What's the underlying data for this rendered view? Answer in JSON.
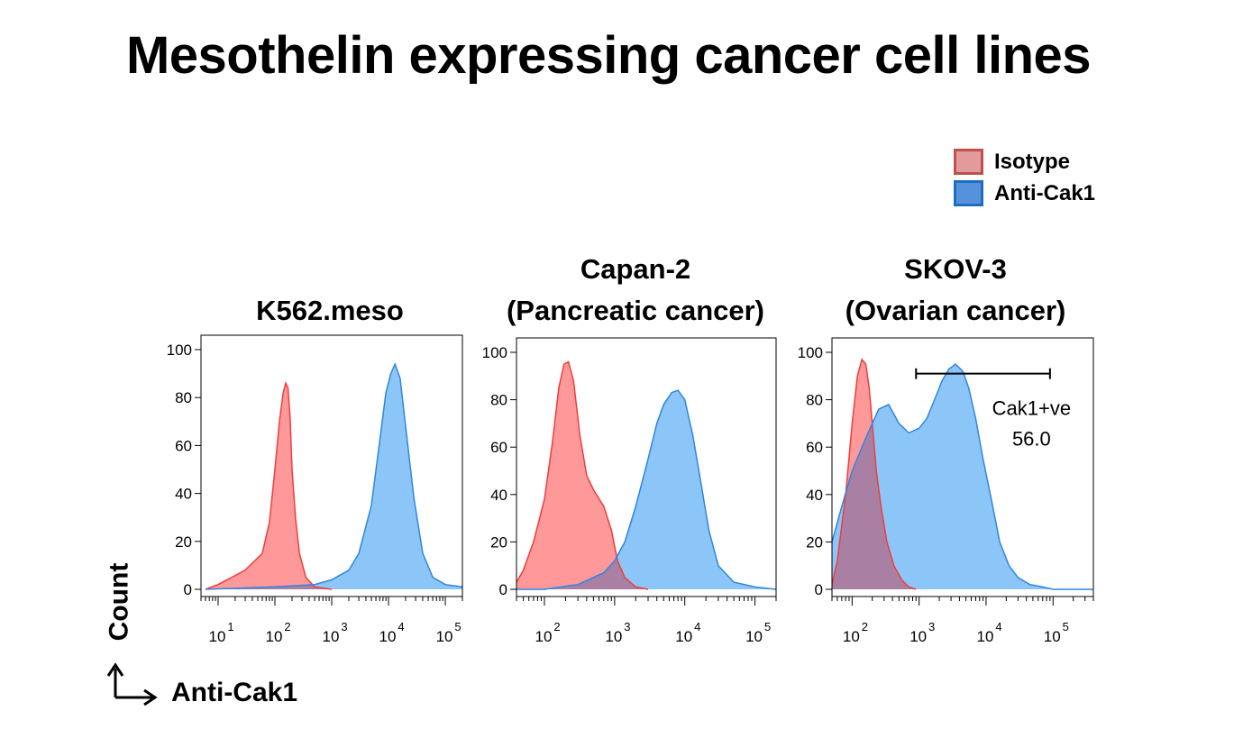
{
  "title": "Mesothelin expressing cancer cell lines",
  "legend": [
    {
      "label": "Isotype",
      "fill": "#e39a9b",
      "border": "#c0504d"
    },
    {
      "label": "Anti-Cak1",
      "fill": "#5691dc",
      "border": "#1f6dbf"
    }
  ],
  "axis_labels": {
    "y": "Count",
    "x": "Anti-Cak1"
  },
  "colors": {
    "isotype_fill": "#ff9999",
    "isotype_line": "#f03c3c",
    "anti_fill": "#8cc5f8",
    "anti_line": "#2f86df",
    "overlap": "#a980a4"
  },
  "chart_data": [
    {
      "type": "area",
      "panel_title": [
        "K562.meso"
      ],
      "xscale": "log",
      "xlim": [
        5,
        200000
      ],
      "ylim": [
        0,
        100
      ],
      "yticks": [
        0,
        20,
        40,
        60,
        80,
        100
      ],
      "xticks": [
        {
          "value": 10,
          "label": "1"
        },
        {
          "value": 100,
          "label": "2"
        },
        {
          "value": 1000,
          "label": "3"
        },
        {
          "value": 10000,
          "label": "4"
        },
        {
          "value": 100000,
          "label": "5"
        }
      ],
      "series": [
        {
          "name": "Isotype",
          "x": [
            6,
            10,
            30,
            60,
            80,
            100,
            120,
            140,
            155,
            170,
            185,
            200,
            230,
            270,
            350,
            500,
            1000
          ],
          "y": [
            0,
            2,
            8,
            15,
            28,
            50,
            70,
            82,
            86,
            84,
            72,
            50,
            30,
            15,
            5,
            1,
            0
          ]
        },
        {
          "name": "Anti-Cak1",
          "x": [
            6,
            100,
            500,
            1000,
            2000,
            3000,
            5000,
            7000,
            9000,
            11000,
            13000,
            16000,
            20000,
            28000,
            40000,
            60000,
            100000,
            200000
          ],
          "y": [
            0,
            1,
            2,
            4,
            8,
            15,
            35,
            62,
            82,
            90,
            94,
            88,
            68,
            38,
            15,
            5,
            2,
            1
          ]
        }
      ]
    },
    {
      "type": "area",
      "panel_title": [
        "Capan-2",
        "(Pancreatic cancer)"
      ],
      "xscale": "log",
      "xlim": [
        40,
        200000
      ],
      "ylim": [
        0,
        100
      ],
      "yticks": [
        0,
        20,
        40,
        60,
        80,
        100
      ],
      "xticks": [
        {
          "value": 100,
          "label": "2"
        },
        {
          "value": 1000,
          "label": "3"
        },
        {
          "value": 10000,
          "label": "4"
        },
        {
          "value": 100000,
          "label": "5"
        }
      ],
      "series": [
        {
          "name": "Isotype",
          "x": [
            40,
            50,
            70,
            100,
            130,
            160,
            190,
            220,
            260,
            320,
            400,
            500,
            700,
            900,
            1100,
            1400,
            2000,
            3000
          ],
          "y": [
            3,
            8,
            20,
            38,
            62,
            85,
            95,
            96,
            88,
            65,
            48,
            42,
            35,
            25,
            12,
            5,
            1,
            0
          ]
        },
        {
          "name": "Anti-Cak1",
          "x": [
            40,
            100,
            300,
            700,
            1000,
            1400,
            2000,
            3000,
            4000,
            5000,
            6500,
            8000,
            10000,
            13000,
            17000,
            22000,
            30000,
            50000,
            100000,
            200000
          ],
          "y": [
            0,
            0,
            2,
            7,
            12,
            20,
            35,
            55,
            70,
            78,
            83,
            84,
            80,
            65,
            45,
            25,
            10,
            3,
            1,
            0
          ]
        }
      ]
    },
    {
      "type": "area",
      "panel_title": [
        "SKOV-3",
        "(Ovarian cancer)"
      ],
      "xscale": "log",
      "xlim": [
        50,
        400000
      ],
      "ylim": [
        0,
        100
      ],
      "yticks": [
        0,
        20,
        40,
        60,
        80,
        100
      ],
      "xticks": [
        {
          "value": 100,
          "label": "2"
        },
        {
          "value": 1000,
          "label": "3"
        },
        {
          "value": 10000,
          "label": "4"
        },
        {
          "value": 100000,
          "label": "5"
        }
      ],
      "gate": {
        "from": 900,
        "to": 90000,
        "y": 91,
        "label": "Cak1+ve",
        "value": "56.0"
      },
      "series": [
        {
          "name": "Isotype",
          "x": [
            50,
            60,
            80,
            100,
            120,
            140,
            160,
            180,
            200,
            230,
            270,
            330,
            420,
            550,
            700,
            900
          ],
          "y": [
            2,
            12,
            40,
            70,
            90,
            97,
            95,
            85,
            70,
            50,
            35,
            20,
            10,
            4,
            1,
            0
          ]
        },
        {
          "name": "Anti-Cak1",
          "x": [
            50,
            70,
            100,
            150,
            200,
            250,
            350,
            500,
            700,
            1000,
            1300,
            1700,
            2200,
            2800,
            3500,
            4500,
            5500,
            7000,
            9000,
            12000,
            16000,
            22000,
            30000,
            45000,
            70000,
            100000,
            400000
          ],
          "y": [
            20,
            35,
            50,
            62,
            70,
            76,
            78,
            70,
            66,
            68,
            72,
            80,
            88,
            93,
            95,
            92,
            85,
            72,
            55,
            38,
            20,
            10,
            5,
            2,
            1,
            0,
            0
          ]
        }
      ]
    }
  ]
}
